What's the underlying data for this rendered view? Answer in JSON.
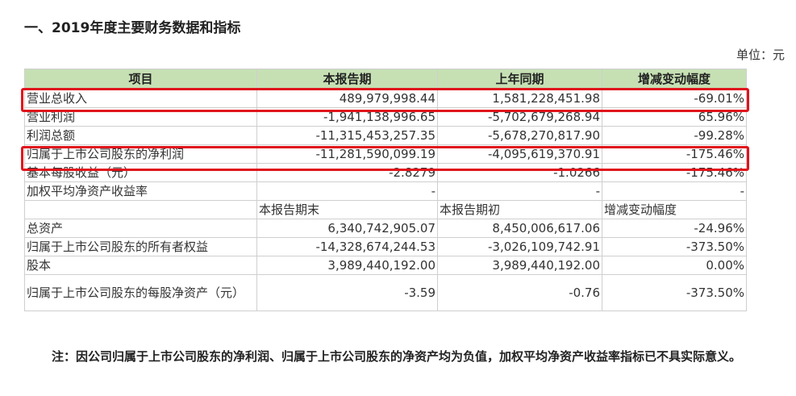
{
  "section": {
    "title": "一、2019年度主要财务数据和指标",
    "unit": "单位：元"
  },
  "table": {
    "headers": [
      "项目",
      "本报告期",
      "上年同期",
      "增减变动幅度"
    ],
    "rows": [
      {
        "label": "营业总收入",
        "current": "489,979,998.44",
        "previous": "1,581,228,451.98",
        "change": "-69.01%"
      },
      {
        "label": "营业利润",
        "current": "-1,941,138,996.65",
        "previous": "-5,702,679,268.94",
        "change": "65.96%"
      },
      {
        "label": "利润总额",
        "current": "-11,315,453,257.35",
        "previous": "-5,678,270,817.90",
        "change": "-99.28%"
      },
      {
        "label": "归属于上市公司股东的净利润",
        "current": "-11,281,590,099.19",
        "previous": "-4,095,619,370.91",
        "change": "-175.46%"
      },
      {
        "label": "基本每股收益（元）",
        "current": "-2.8279",
        "previous": "-1.0266",
        "change": "-175.46%"
      },
      {
        "label": "加权平均净资产收益率",
        "current": "-",
        "previous": "-",
        "change": "-"
      }
    ],
    "subheaders": [
      "本报告期末",
      "本报告期初",
      "增减变动幅度"
    ],
    "rows2": [
      {
        "label": "总资产",
        "current": "6,340,742,905.07",
        "previous": "8,450,006,617.06",
        "change": "-24.96%"
      },
      {
        "label": "归属于上市公司股东的所有者权益",
        "current": "-14,328,674,244.53",
        "previous": "-3,026,109,742.91",
        "change": "-373.50%"
      },
      {
        "label": "股本",
        "current": "3,989,440,192.00",
        "previous": "3,989,440,192.00",
        "change": "0.00%"
      },
      {
        "label": "归属于上市公司股东的每股净资产（元）",
        "current": "-3.59",
        "previous": "-0.76",
        "change": "-373.50%"
      }
    ]
  },
  "note": "注：因公司归属于上市公司股东的净利润、归属于上市公司股东的净资产均为负值，加权平均净资产收益率指标已不具实际意义。",
  "colors": {
    "header_bg": "#c6e0b4",
    "highlight": "#e0141c"
  }
}
